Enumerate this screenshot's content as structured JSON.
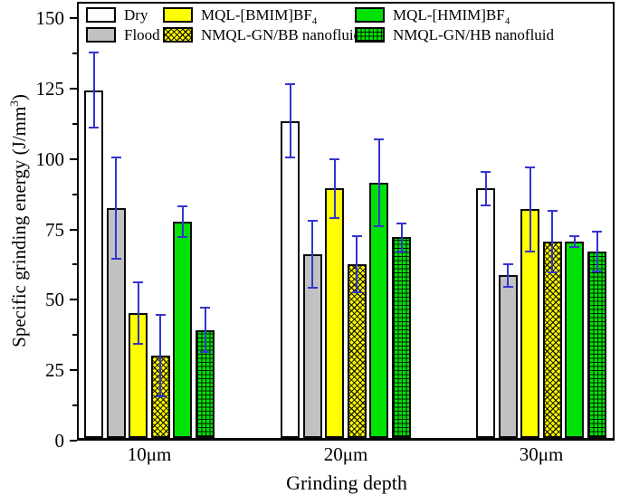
{
  "chart_data": {
    "type": "bar",
    "title": "",
    "xlabel": "Grinding depth",
    "ylabel": {
      "pre": "Specific grinding energy (J/mm",
      "sup": "3",
      "post": ")"
    },
    "categories": [
      "10μm",
      "20μm",
      "30μm"
    ],
    "y_ticks": [
      0,
      25,
      50,
      75,
      100,
      125,
      150
    ],
    "y_minor_step": 12.5,
    "ylim": [
      0,
      155
    ],
    "grid": false,
    "legend_position": "top-inside",
    "error_bar_color": "#3434CF",
    "series": [
      {
        "name": "Dry",
        "sub": "",
        "fill": "#FFFFFF",
        "pattern": "none",
        "values": [
          124,
          113,
          89
        ],
        "errors": [
          13.5,
          13,
          6
        ]
      },
      {
        "name": "Flood",
        "sub": "",
        "fill": "#C1C1C1",
        "pattern": "none",
        "values": [
          82,
          65.5,
          58
        ],
        "errors": [
          18,
          12,
          4
        ]
      },
      {
        "name": "MQL-[BMIM]BF",
        "sub": "4",
        "fill": "#FFFF00",
        "pattern": "none",
        "values": [
          44.5,
          89,
          81.5
        ],
        "errors": [
          11,
          10.5,
          15
        ]
      },
      {
        "name": "NMQL-GN/BB nanofluid",
        "sub": "",
        "fill": "#FFFF00",
        "pattern": "crosshatch",
        "values": [
          29.5,
          62,
          70
        ],
        "errors": [
          14.5,
          10,
          11
        ]
      },
      {
        "name": "MQL-[HMIM]BF",
        "sub": "4",
        "fill": "#00E206",
        "pattern": "none",
        "values": [
          77,
          91,
          70
        ],
        "errors": [
          5.5,
          15.5,
          2
        ]
      },
      {
        "name": "NMQL-GN/HB nanofluid",
        "sub": "",
        "fill": "#00E206",
        "pattern": "grid",
        "values": [
          38.5,
          71.5,
          66.5
        ],
        "errors": [
          8,
          5,
          7
        ]
      }
    ]
  }
}
